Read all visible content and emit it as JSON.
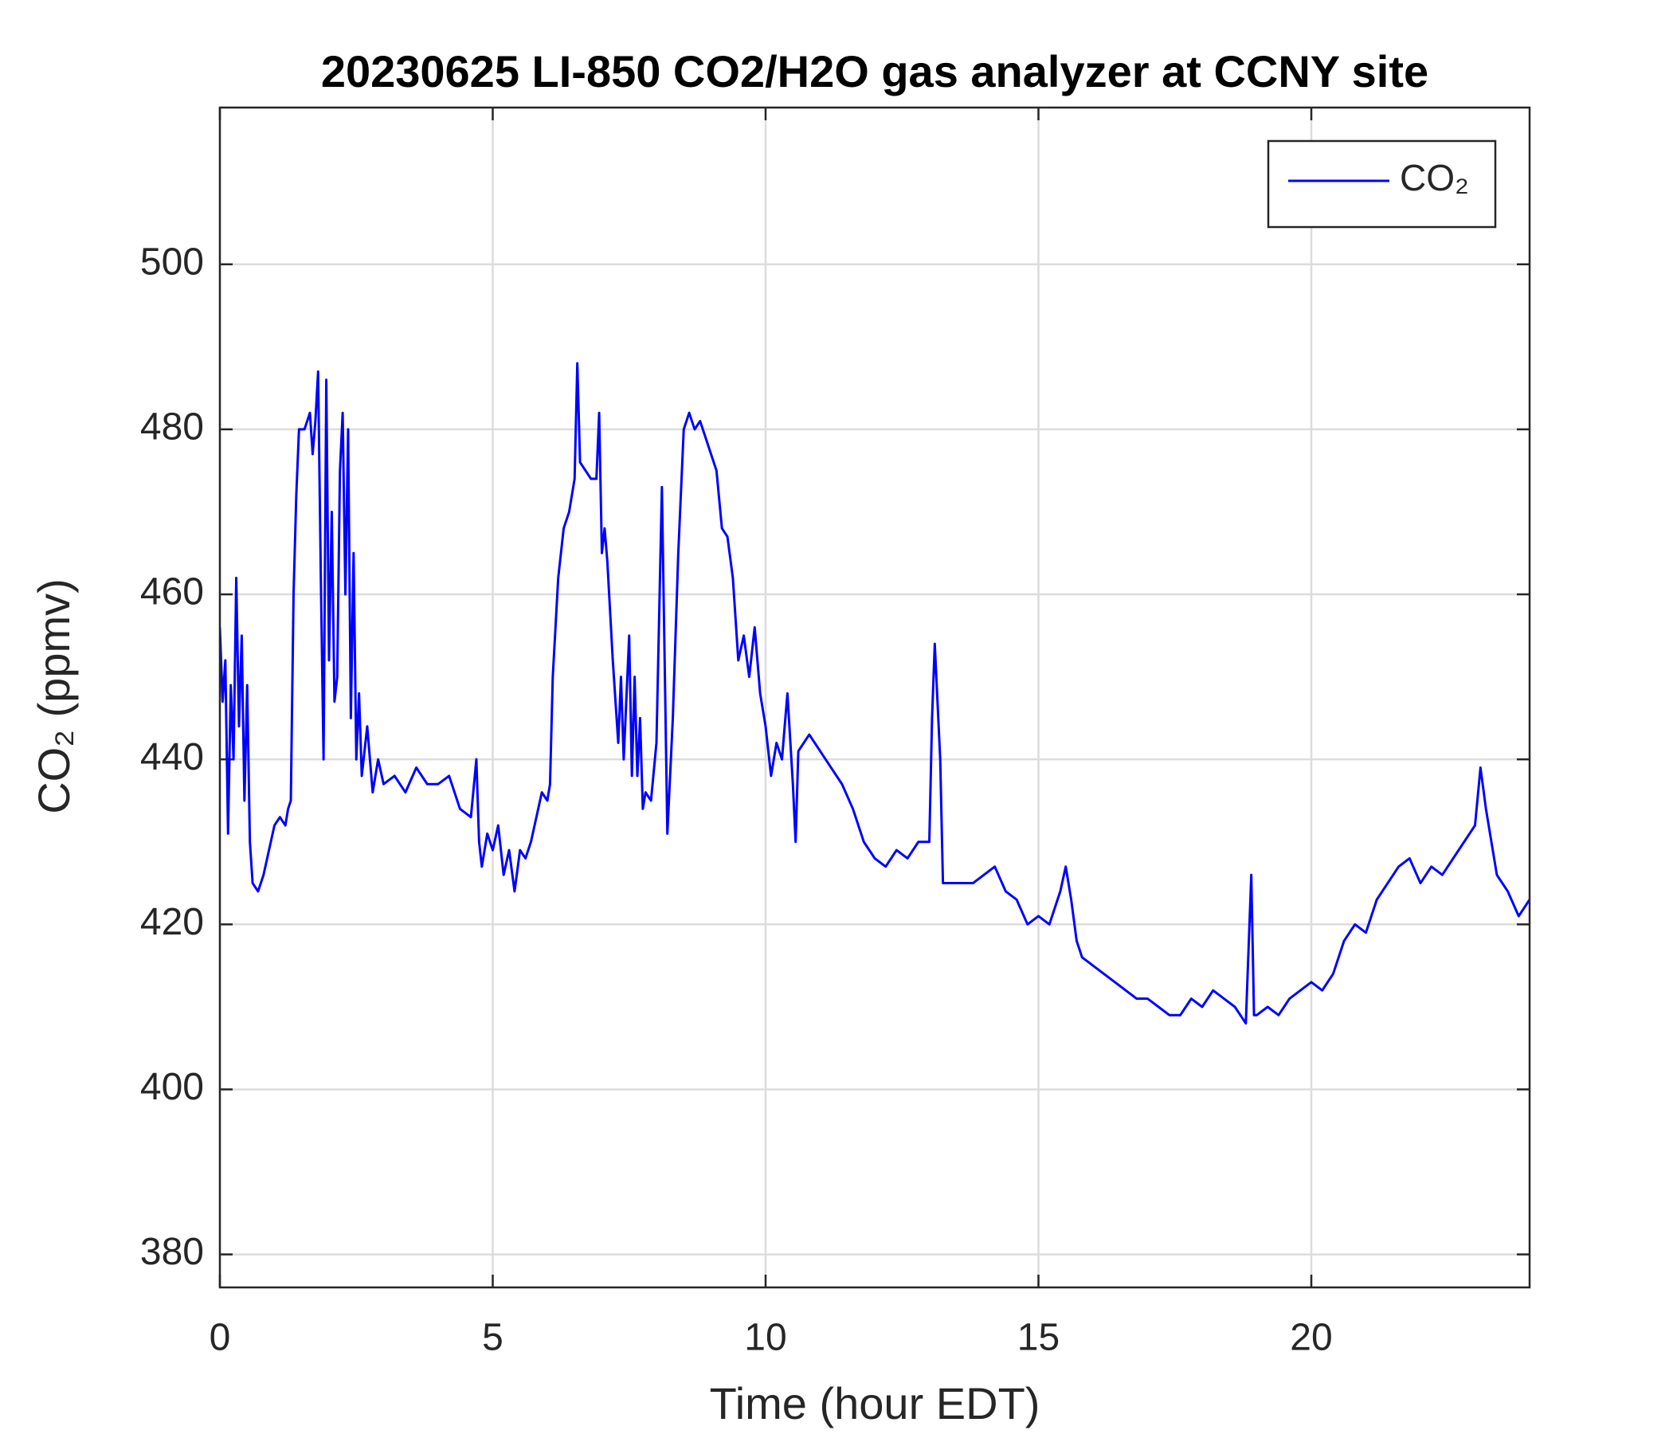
{
  "chart_data": {
    "type": "line",
    "title": "20230625 LI-850 CO2/H2O gas analyzer at CCNY site",
    "x_label": "Time (hour EDT)",
    "y_label": "CO₂ (ppmv)",
    "xlim": [
      0,
      24
    ],
    "ylim": [
      376,
      519
    ],
    "xticks": [
      0,
      5,
      10,
      15,
      20
    ],
    "yticks": [
      380,
      400,
      420,
      440,
      460,
      480,
      500
    ],
    "grid": true,
    "legend": "northeast",
    "series": [
      {
        "name": "CO₂",
        "color": "#0000ff",
        "x": [
          0,
          0.05,
          0.1,
          0.15,
          0.2,
          0.25,
          0.3,
          0.35,
          0.4,
          0.45,
          0.5,
          0.55,
          0.6,
          0.7,
          0.8,
          0.9,
          1.0,
          1.1,
          1.2,
          1.25,
          1.3,
          1.35,
          1.4,
          1.45,
          1.55,
          1.65,
          1.7,
          1.75,
          1.8,
          1.85,
          1.9,
          1.95,
          2.0,
          2.05,
          2.1,
          2.15,
          2.2,
          2.25,
          2.3,
          2.35,
          2.4,
          2.45,
          2.5,
          2.55,
          2.6,
          2.7,
          2.8,
          2.9,
          3.0,
          3.2,
          3.4,
          3.6,
          3.8,
          4.0,
          4.2,
          4.4,
          4.6,
          4.7,
          4.75,
          4.8,
          4.9,
          5.0,
          5.1,
          5.2,
          5.3,
          5.4,
          5.5,
          5.6,
          5.7,
          5.8,
          5.9,
          6.0,
          6.05,
          6.1,
          6.2,
          6.3,
          6.4,
          6.5,
          6.55,
          6.6,
          6.7,
          6.8,
          6.9,
          6.95,
          7.0,
          7.05,
          7.1,
          7.2,
          7.3,
          7.35,
          7.4,
          7.5,
          7.55,
          7.6,
          7.65,
          7.7,
          7.75,
          7.8,
          7.9,
          8.0,
          8.1,
          8.2,
          8.3,
          8.4,
          8.5,
          8.6,
          8.7,
          8.8,
          8.9,
          9.0,
          9.1,
          9.2,
          9.3,
          9.4,
          9.5,
          9.6,
          9.7,
          9.8,
          9.9,
          10.0,
          10.1,
          10.2,
          10.3,
          10.4,
          10.5,
          10.55,
          10.6,
          10.8,
          11.0,
          11.2,
          11.4,
          11.6,
          11.8,
          12.0,
          12.2,
          12.4,
          12.6,
          12.8,
          13.0,
          13.05,
          13.1,
          13.2,
          13.25,
          13.4,
          13.6,
          13.8,
          14.0,
          14.2,
          14.4,
          14.6,
          14.8,
          15.0,
          15.2,
          15.4,
          15.5,
          15.6,
          15.7,
          15.8,
          16.0,
          16.2,
          16.4,
          16.6,
          16.8,
          17.0,
          17.2,
          17.4,
          17.6,
          17.8,
          18.0,
          18.2,
          18.4,
          18.6,
          18.8,
          18.9,
          18.95,
          19.0,
          19.2,
          19.4,
          19.6,
          19.8,
          20.0,
          20.2,
          20.4,
          20.6,
          20.8,
          21.0,
          21.2,
          21.4,
          21.6,
          21.8,
          22.0,
          22.2,
          22.4,
          22.6,
          22.8,
          23.0,
          23.1,
          23.2,
          23.3,
          23.4,
          23.6,
          23.8,
          24.0
        ],
        "values": [
          456,
          447,
          452,
          431,
          449,
          440,
          462,
          444,
          455,
          435,
          449,
          430,
          425,
          424,
          426,
          429,
          432,
          433,
          432,
          434,
          435,
          460,
          472,
          480,
          480,
          482,
          477,
          481,
          487,
          462,
          440,
          486,
          452,
          470,
          447,
          450,
          475,
          482,
          460,
          480,
          445,
          465,
          440,
          448,
          438,
          444,
          436,
          440,
          437,
          438,
          436,
          439,
          437,
          437,
          438,
          434,
          433,
          440,
          430,
          427,
          431,
          429,
          432,
          426,
          429,
          424,
          429,
          428,
          430,
          433,
          436,
          435,
          437,
          450,
          462,
          468,
          470,
          474,
          488,
          476,
          475,
          474,
          474,
          482,
          465,
          468,
          464,
          452,
          442,
          450,
          440,
          455,
          438,
          450,
          438,
          445,
          434,
          436,
          435,
          442,
          473,
          431,
          445,
          465,
          480,
          482,
          480,
          481,
          479,
          477,
          475,
          468,
          467,
          462,
          452,
          455,
          450,
          456,
          448,
          444,
          438,
          442,
          440,
          448,
          437,
          430,
          441,
          443,
          441,
          439,
          437,
          434,
          430,
          428,
          427,
          429,
          428,
          430,
          430,
          445,
          454,
          440,
          425,
          425,
          425,
          425,
          426,
          427,
          424,
          423,
          420,
          421,
          420,
          424,
          427,
          423,
          418,
          416,
          415,
          414,
          413,
          412,
          411,
          411,
          410,
          409,
          409,
          411,
          410,
          412,
          411,
          410,
          408,
          426,
          409,
          409,
          410,
          409,
          411,
          412,
          413,
          412,
          414,
          418,
          420,
          419,
          423,
          425,
          427,
          428,
          425,
          427,
          426,
          428,
          430,
          432,
          439,
          434,
          430,
          426,
          424,
          421,
          423
        ]
      }
    ]
  }
}
